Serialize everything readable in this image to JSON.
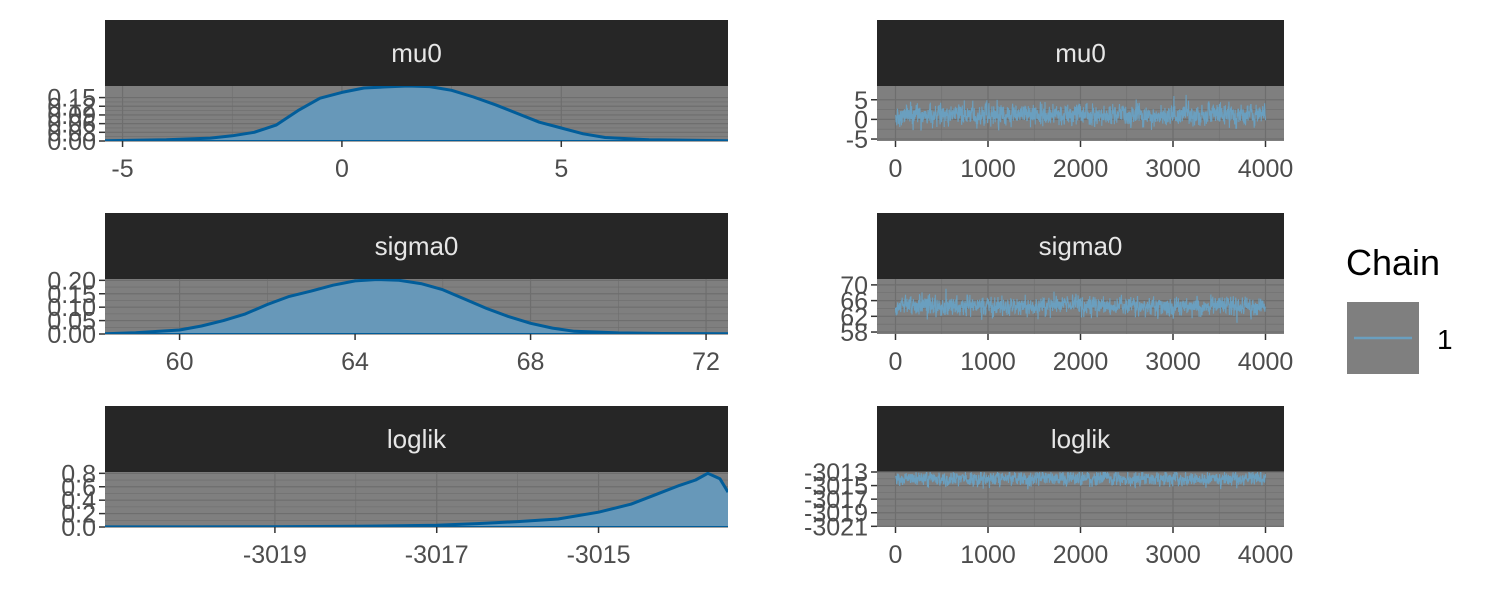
{
  "colors": {
    "strip_bg": "#262626",
    "panel_bg": "#7f7f7f",
    "grid": "#6e6e6e",
    "density_fill": "#6798b9",
    "density_line": "#015d9a",
    "trace_line": "#6a9fbf",
    "axis_text": "#4d4d4d"
  },
  "legend": {
    "title": "Chain",
    "items": [
      {
        "label": "1"
      }
    ]
  },
  "chart_data": [
    {
      "type": "area",
      "panel": "density",
      "title": "mu0",
      "xlim": [
        -5.4,
        8.8
      ],
      "ylim": [
        0,
        0.19
      ],
      "xticks": [
        -5,
        0,
        5
      ],
      "xtick_labels": [
        "-5",
        "0",
        "5"
      ],
      "yticks": [
        0,
        0.03,
        0.06,
        0.09,
        0.12,
        0.15
      ],
      "ytick_labels": [
        "0.00",
        "0.03",
        "0.06",
        "0.09",
        "0.12",
        "0.15"
      ],
      "x": [
        -5.4,
        -4,
        -3,
        -2.5,
        -2,
        -1.5,
        -1,
        -0.5,
        0,
        0.5,
        1,
        1.5,
        2,
        2.5,
        3,
        3.5,
        4,
        4.5,
        5,
        5.5,
        6,
        7,
        8.8
      ],
      "y": [
        0.001,
        0.004,
        0.01,
        0.018,
        0.03,
        0.055,
        0.105,
        0.148,
        0.168,
        0.183,
        0.187,
        0.19,
        0.188,
        0.175,
        0.152,
        0.125,
        0.095,
        0.065,
        0.045,
        0.025,
        0.012,
        0.004,
        0.001
      ]
    },
    {
      "type": "line",
      "panel": "trace",
      "title": "mu0",
      "xlim": [
        -200,
        4200
      ],
      "ylim": [
        -5.5,
        8.5
      ],
      "xticks": [
        0,
        1000,
        2000,
        3000,
        4000
      ],
      "xtick_labels": [
        "0",
        "1000",
        "2000",
        "3000",
        "4000"
      ],
      "yticks": [
        -5,
        0,
        5
      ],
      "ytick_labels": [
        "-5",
        "0",
        "5"
      ],
      "iterations": 4000,
      "center": 1.2,
      "spread": 2.1,
      "min": -5.2,
      "max": 8.3
    },
    {
      "type": "area",
      "panel": "density",
      "title": "sigma0",
      "xlim": [
        58.3,
        72.5
      ],
      "ylim": [
        0,
        0.205
      ],
      "xticks": [
        60,
        64,
        68,
        72
      ],
      "xtick_labels": [
        "60",
        "64",
        "68",
        "72"
      ],
      "yticks": [
        0,
        0.05,
        0.1,
        0.15,
        0.2
      ],
      "ytick_labels": [
        "0.00",
        "0.05",
        "0.10",
        "0.15",
        "0.20"
      ],
      "x": [
        58.3,
        59,
        60,
        60.5,
        61,
        61.5,
        62,
        62.5,
        63,
        63.5,
        64,
        64.5,
        65,
        65.5,
        66,
        66.5,
        67,
        67.5,
        68,
        68.5,
        69,
        70,
        71,
        72.5
      ],
      "y": [
        0.001,
        0.005,
        0.015,
        0.03,
        0.05,
        0.075,
        0.11,
        0.14,
        0.16,
        0.182,
        0.198,
        0.203,
        0.2,
        0.188,
        0.165,
        0.13,
        0.095,
        0.065,
        0.04,
        0.022,
        0.01,
        0.004,
        0.002,
        0.001
      ]
    },
    {
      "type": "line",
      "panel": "trace",
      "title": "sigma0",
      "xlim": [
        -200,
        4200
      ],
      "ylim": [
        57.5,
        71.5
      ],
      "xticks": [
        0,
        1000,
        2000,
        3000,
        4000
      ],
      "xtick_labels": [
        "0",
        "1000",
        "2000",
        "3000",
        "4000"
      ],
      "yticks": [
        58,
        62,
        66,
        70
      ],
      "ytick_labels": [
        "58",
        "62",
        "66",
        "70"
      ],
      "iterations": 4000,
      "center": 64.6,
      "spread": 1.9,
      "min": 59.0,
      "max": 71.3
    },
    {
      "type": "area",
      "panel": "density",
      "title": "loglik",
      "xlim": [
        -3021.1,
        -3013.4
      ],
      "ylim": [
        0,
        0.82
      ],
      "xticks": [
        -3019,
        -3017,
        -3015
      ],
      "xtick_labels": [
        "-3019",
        "-3017",
        "-3015"
      ],
      "yticks": [
        0,
        0.2,
        0.4,
        0.6,
        0.8
      ],
      "ytick_labels": [
        "0.0",
        "0.2",
        "0.4",
        "0.6",
        "0.8"
      ],
      "x": [
        -3021.1,
        -3020,
        -3019,
        -3018,
        -3017,
        -3016.5,
        -3016,
        -3015.5,
        -3015,
        -3014.6,
        -3014.3,
        -3014,
        -3013.8,
        -3013.65,
        -3013.5,
        -3013.4
      ],
      "y": [
        0.001,
        0.002,
        0.005,
        0.01,
        0.025,
        0.05,
        0.08,
        0.12,
        0.22,
        0.34,
        0.48,
        0.62,
        0.7,
        0.8,
        0.72,
        0.52
      ]
    },
    {
      "type": "line",
      "panel": "trace",
      "title": "loglik",
      "xlim": [
        -200,
        4200
      ],
      "ylim": [
        -3021.1,
        -3013.0
      ],
      "xticks": [
        0,
        1000,
        2000,
        3000,
        4000
      ],
      "xtick_labels": [
        "0",
        "1000",
        "2000",
        "3000",
        "4000"
      ],
      "yticks": [
        -3021,
        -3019,
        -3017,
        -3015,
        -3013
      ],
      "ytick_labels": [
        "-3021",
        "-3019",
        "-3017",
        "-3015",
        "-3013"
      ],
      "iterations": 4000,
      "center": -3014.0,
      "spread": 0.8,
      "min": -3020.9,
      "max": -3013.0
    }
  ]
}
